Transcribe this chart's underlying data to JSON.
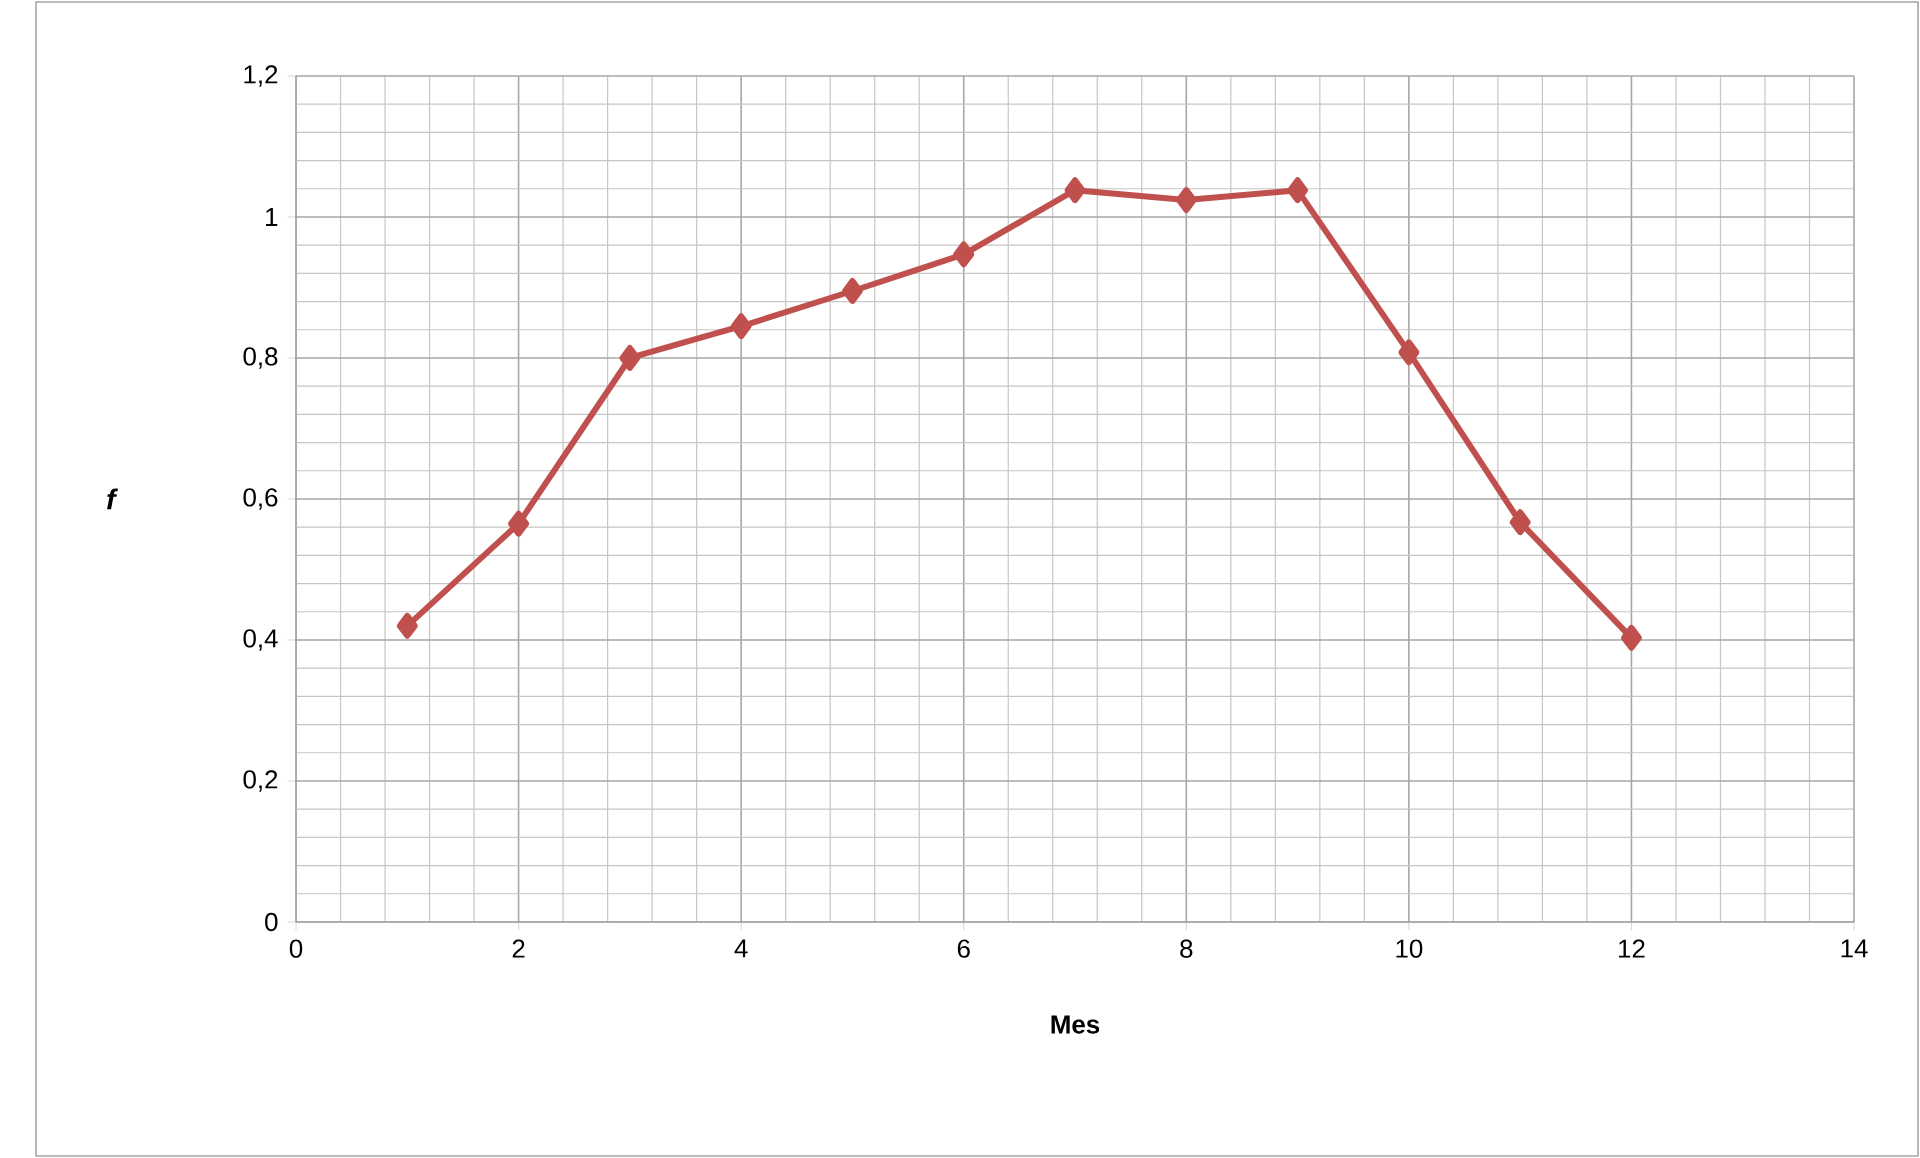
{
  "chart_data": {
    "type": "line",
    "xlabel": "Mes",
    "ylabel": "f",
    "x": [
      1,
      2,
      3,
      4,
      5,
      6,
      7,
      8,
      9,
      10,
      11,
      12
    ],
    "series": [
      {
        "color": "#c0504d",
        "values": [
          0.42,
          0.565,
          0.8,
          0.845,
          0.895,
          0.947,
          1.038,
          1.024,
          1.038,
          0.808,
          0.567,
          0.403
        ]
      }
    ],
    "xlim": [
      0,
      14
    ],
    "xticks": [
      0,
      2,
      4,
      6,
      8,
      10,
      12,
      14
    ],
    "ylim": [
      0,
      1.2
    ],
    "yticks": [
      {
        "value": 0,
        "label": "0"
      },
      {
        "value": 0.2,
        "label": "0,2"
      },
      {
        "value": 0.4,
        "label": "0,4"
      },
      {
        "value": 0.6,
        "label": "0,6"
      },
      {
        "value": 0.8,
        "label": "0,8"
      },
      {
        "value": 1,
        "label": "1"
      },
      {
        "value": 1.2,
        "label": "1,2"
      }
    ],
    "grid": true,
    "marker": "diamond",
    "line_style": "solid"
  }
}
